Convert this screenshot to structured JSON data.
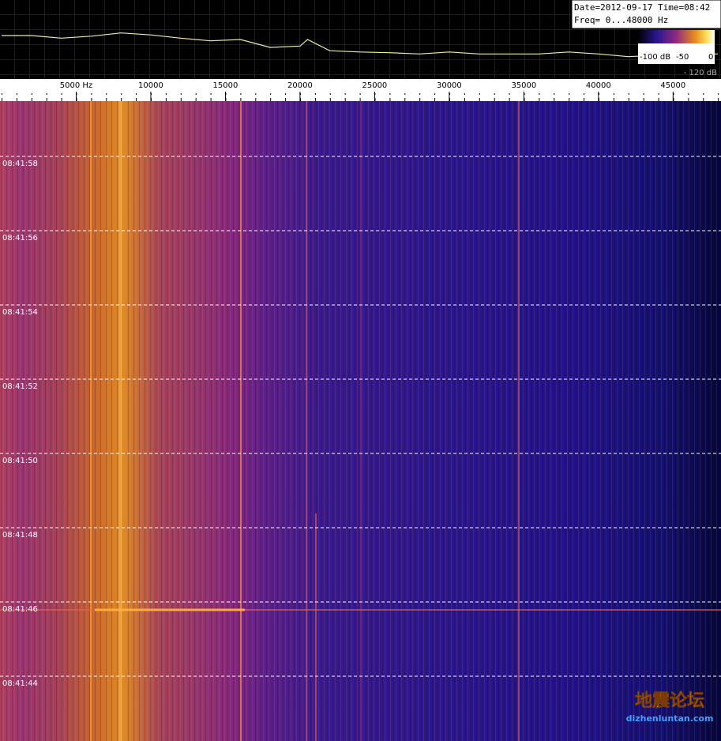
{
  "chart_data": {
    "type": "spectrogram",
    "header": [
      "Date=2012-09-17 Time=08:42",
      "Freq= 0...48000 Hz"
    ],
    "xlim": [
      0,
      48000
    ],
    "xticks": [
      {
        "value": 5000,
        "label": "5000 Hz"
      },
      10000,
      15000,
      20000,
      25000,
      30000,
      35000,
      40000,
      45000
    ],
    "time_labels": [
      "08:41:58",
      "08:41:56",
      "08:41:54",
      "08:41:52",
      "08:41:50",
      "08:41:48",
      "08:41:46",
      "08:41:44"
    ],
    "colorbar_labels": [
      "-100 dB",
      "-50",
      "0"
    ],
    "spectrum_floor_label": "- 120 dB",
    "ylim": [
      -120,
      0
    ],
    "spectrum": {
      "color": "#ecec9a",
      "x": [
        0,
        2000,
        4000,
        6000,
        8000,
        10000,
        12000,
        14000,
        16000,
        18000,
        20000,
        20500,
        22000,
        24000,
        26000,
        28000,
        30000,
        32000,
        34000,
        36000,
        38000,
        40000,
        42000,
        44000,
        46000,
        48000
      ],
      "values": [
        -54,
        -54,
        -58,
        -55,
        -50,
        -53,
        -58,
        -62,
        -60,
        -72,
        -70,
        -60,
        -77,
        -79,
        -80,
        -82,
        -79,
        -82,
        -82,
        -82,
        -79,
        -82,
        -86,
        -84,
        -82,
        -82
      ]
    },
    "watermark": [
      "地震论坛",
      "dizhenluntan.com"
    ]
  }
}
